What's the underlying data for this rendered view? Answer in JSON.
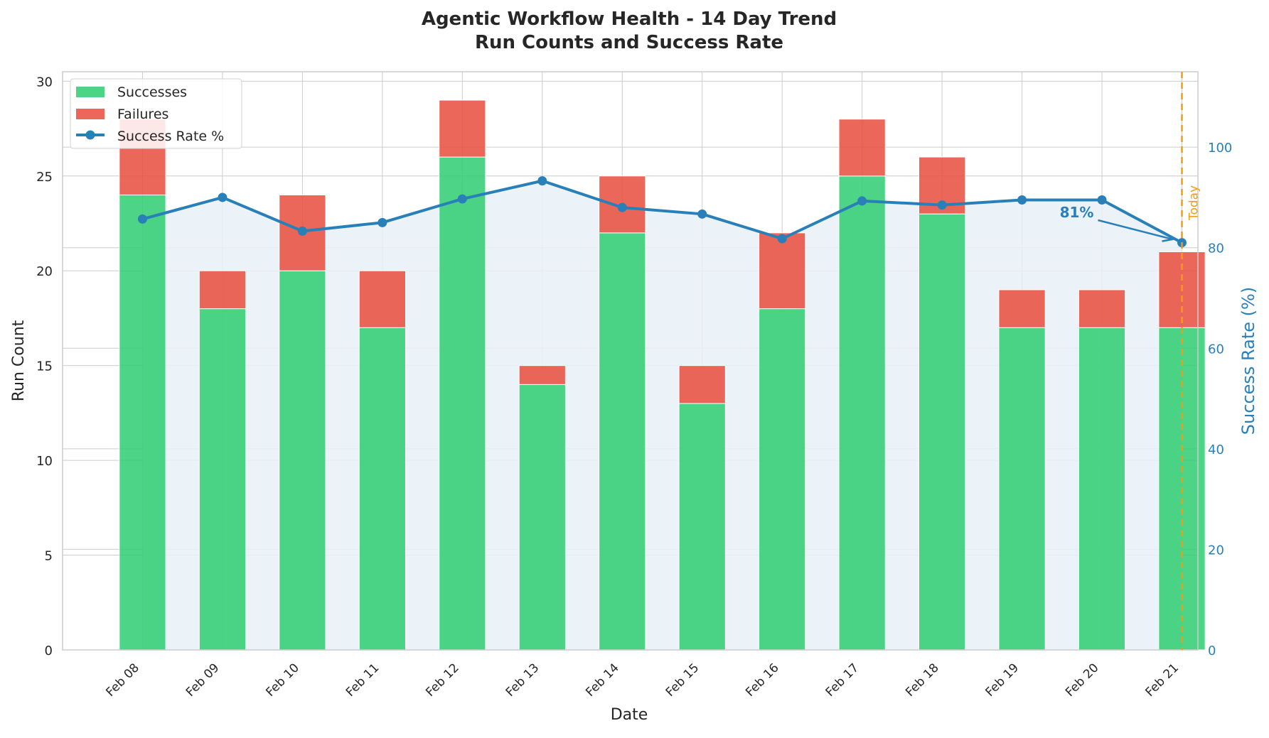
{
  "chart_data": {
    "type": "bar",
    "stacked": true,
    "title": "Agentic Workflow Health - 14 Day Trend",
    "subtitle": "Run Counts and Success Rate",
    "xlabel": "Date",
    "ylabel": "Run Count",
    "y2label": "Success Rate (%)",
    "categories": [
      "Feb 08",
      "Feb 09",
      "Feb 10",
      "Feb 11",
      "Feb 12",
      "Feb 13",
      "Feb 14",
      "Feb 15",
      "Feb 16",
      "Feb 17",
      "Feb 18",
      "Feb 19",
      "Feb 20",
      "Feb 21"
    ],
    "ylim": [
      0,
      30.5
    ],
    "yticks": [
      0,
      5,
      10,
      15,
      20,
      25,
      30
    ],
    "y2lim": [
      0,
      115
    ],
    "y2ticks": [
      0,
      20,
      40,
      60,
      80,
      100
    ],
    "series": [
      {
        "name": "Successes",
        "kind": "bar",
        "color": "#2ecc71",
        "values": [
          24,
          18,
          20,
          17,
          26,
          14,
          22,
          13,
          18,
          25,
          23,
          17,
          17,
          17
        ]
      },
      {
        "name": "Failures",
        "kind": "bar",
        "color": "#e74c3c",
        "values": [
          4,
          2,
          4,
          3,
          3,
          1,
          3,
          2,
          4,
          3,
          3,
          2,
          2,
          4
        ]
      },
      {
        "name": "Success Rate %",
        "kind": "line",
        "axis": "right",
        "color": "#2980b9",
        "values": [
          85.7,
          90.0,
          83.3,
          85.0,
          89.7,
          93.3,
          88.0,
          86.7,
          81.8,
          89.3,
          88.5,
          89.5,
          89.5,
          81.0
        ]
      }
    ],
    "legend": {
      "position": "top-left",
      "entries": [
        "Successes",
        "Failures",
        "Success Rate %"
      ]
    },
    "annotations": [
      {
        "text": "81%",
        "target_index": 13,
        "target_value": 81.0
      },
      {
        "text": "Today",
        "type": "vline",
        "target_index": 13,
        "color": "#f39c12"
      }
    ],
    "grid": true
  },
  "colors": {
    "success": "#2ecc71",
    "failure": "#e74c3c",
    "rate": "#2980b9",
    "today": "#f39c12",
    "fill": "#e8f0f7"
  }
}
